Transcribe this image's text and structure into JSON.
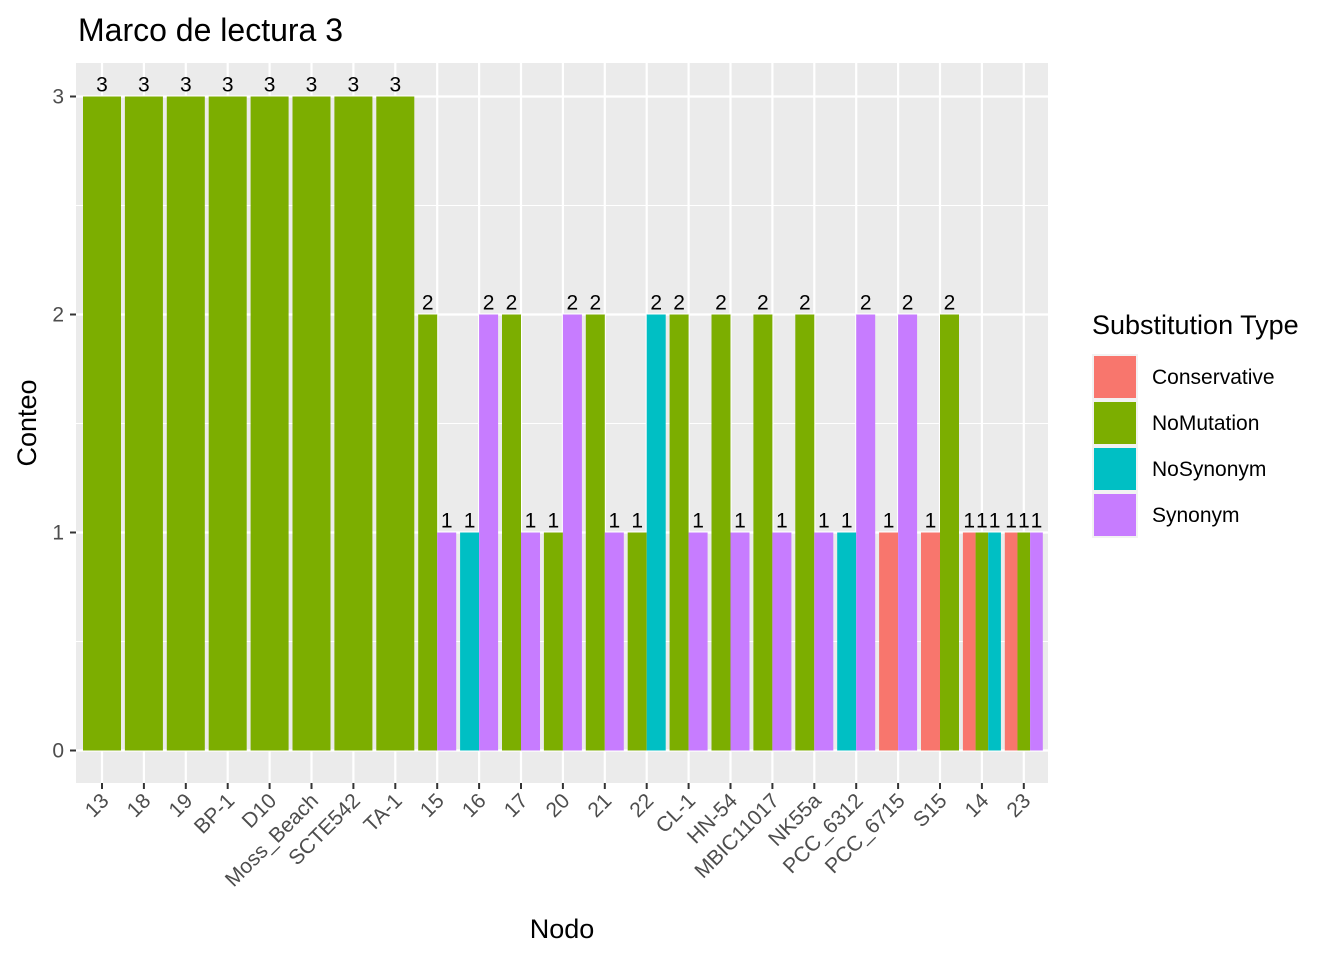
{
  "chart_data": {
    "type": "bar",
    "title": "Marco de lectura 3",
    "xlabel": "Nodo",
    "ylabel": "Conteo",
    "ylim": [
      0,
      3
    ],
    "yticks": [
      0,
      1,
      2,
      3
    ],
    "grid": true,
    "legend": {
      "title": "Substitution Type",
      "placement": "right",
      "entries": [
        "Conservative",
        "NoMutation",
        "NoSynonym",
        "Synonym"
      ]
    },
    "colors": {
      "Conservative": "#F8766D",
      "NoMutation": "#7CAE00",
      "NoSynonym": "#00BFC4",
      "Synonym": "#C77CFF"
    },
    "categories": [
      "13",
      "18",
      "19",
      "BP-1",
      "D10",
      "Moss_Beach",
      "SCTE542",
      "TA-1",
      "15",
      "16",
      "17",
      "20",
      "21",
      "22",
      "CL-1",
      "HN-54",
      "MBIC11017",
      "NK55a",
      "PCC_6312",
      "PCC_6715",
      "S15",
      "14",
      "23"
    ],
    "bars": [
      [
        {
          "type": "NoMutation",
          "value": 3
        }
      ],
      [
        {
          "type": "NoMutation",
          "value": 3
        }
      ],
      [
        {
          "type": "NoMutation",
          "value": 3
        }
      ],
      [
        {
          "type": "NoMutation",
          "value": 3
        }
      ],
      [
        {
          "type": "NoMutation",
          "value": 3
        }
      ],
      [
        {
          "type": "NoMutation",
          "value": 3
        }
      ],
      [
        {
          "type": "NoMutation",
          "value": 3
        }
      ],
      [
        {
          "type": "NoMutation",
          "value": 3
        }
      ],
      [
        {
          "type": "NoMutation",
          "value": 2
        },
        {
          "type": "Synonym",
          "value": 1
        }
      ],
      [
        {
          "type": "NoSynonym",
          "value": 1
        },
        {
          "type": "Synonym",
          "value": 2
        }
      ],
      [
        {
          "type": "NoMutation",
          "value": 2
        },
        {
          "type": "Synonym",
          "value": 1
        }
      ],
      [
        {
          "type": "NoMutation",
          "value": 1
        },
        {
          "type": "Synonym",
          "value": 2
        }
      ],
      [
        {
          "type": "NoMutation",
          "value": 2
        },
        {
          "type": "Synonym",
          "value": 1
        }
      ],
      [
        {
          "type": "NoMutation",
          "value": 1
        },
        {
          "type": "NoSynonym",
          "value": 2
        }
      ],
      [
        {
          "type": "NoMutation",
          "value": 2
        },
        {
          "type": "Synonym",
          "value": 1
        }
      ],
      [
        {
          "type": "NoMutation",
          "value": 2
        },
        {
          "type": "Synonym",
          "value": 1
        }
      ],
      [
        {
          "type": "NoMutation",
          "value": 2
        },
        {
          "type": "Synonym",
          "value": 1
        }
      ],
      [
        {
          "type": "NoMutation",
          "value": 2
        },
        {
          "type": "Synonym",
          "value": 1
        }
      ],
      [
        {
          "type": "NoSynonym",
          "value": 1
        },
        {
          "type": "Synonym",
          "value": 2
        }
      ],
      [
        {
          "type": "Conservative",
          "value": 1
        },
        {
          "type": "Synonym",
          "value": 2
        }
      ],
      [
        {
          "type": "Conservative",
          "value": 1
        },
        {
          "type": "NoMutation",
          "value": 2
        }
      ],
      [
        {
          "type": "Conservative",
          "value": 1
        },
        {
          "type": "NoMutation",
          "value": 1
        },
        {
          "type": "NoSynonym",
          "value": 1
        }
      ],
      [
        {
          "type": "Conservative",
          "value": 1
        },
        {
          "type": "NoMutation",
          "value": 1
        },
        {
          "type": "Synonym",
          "value": 1
        }
      ]
    ]
  }
}
